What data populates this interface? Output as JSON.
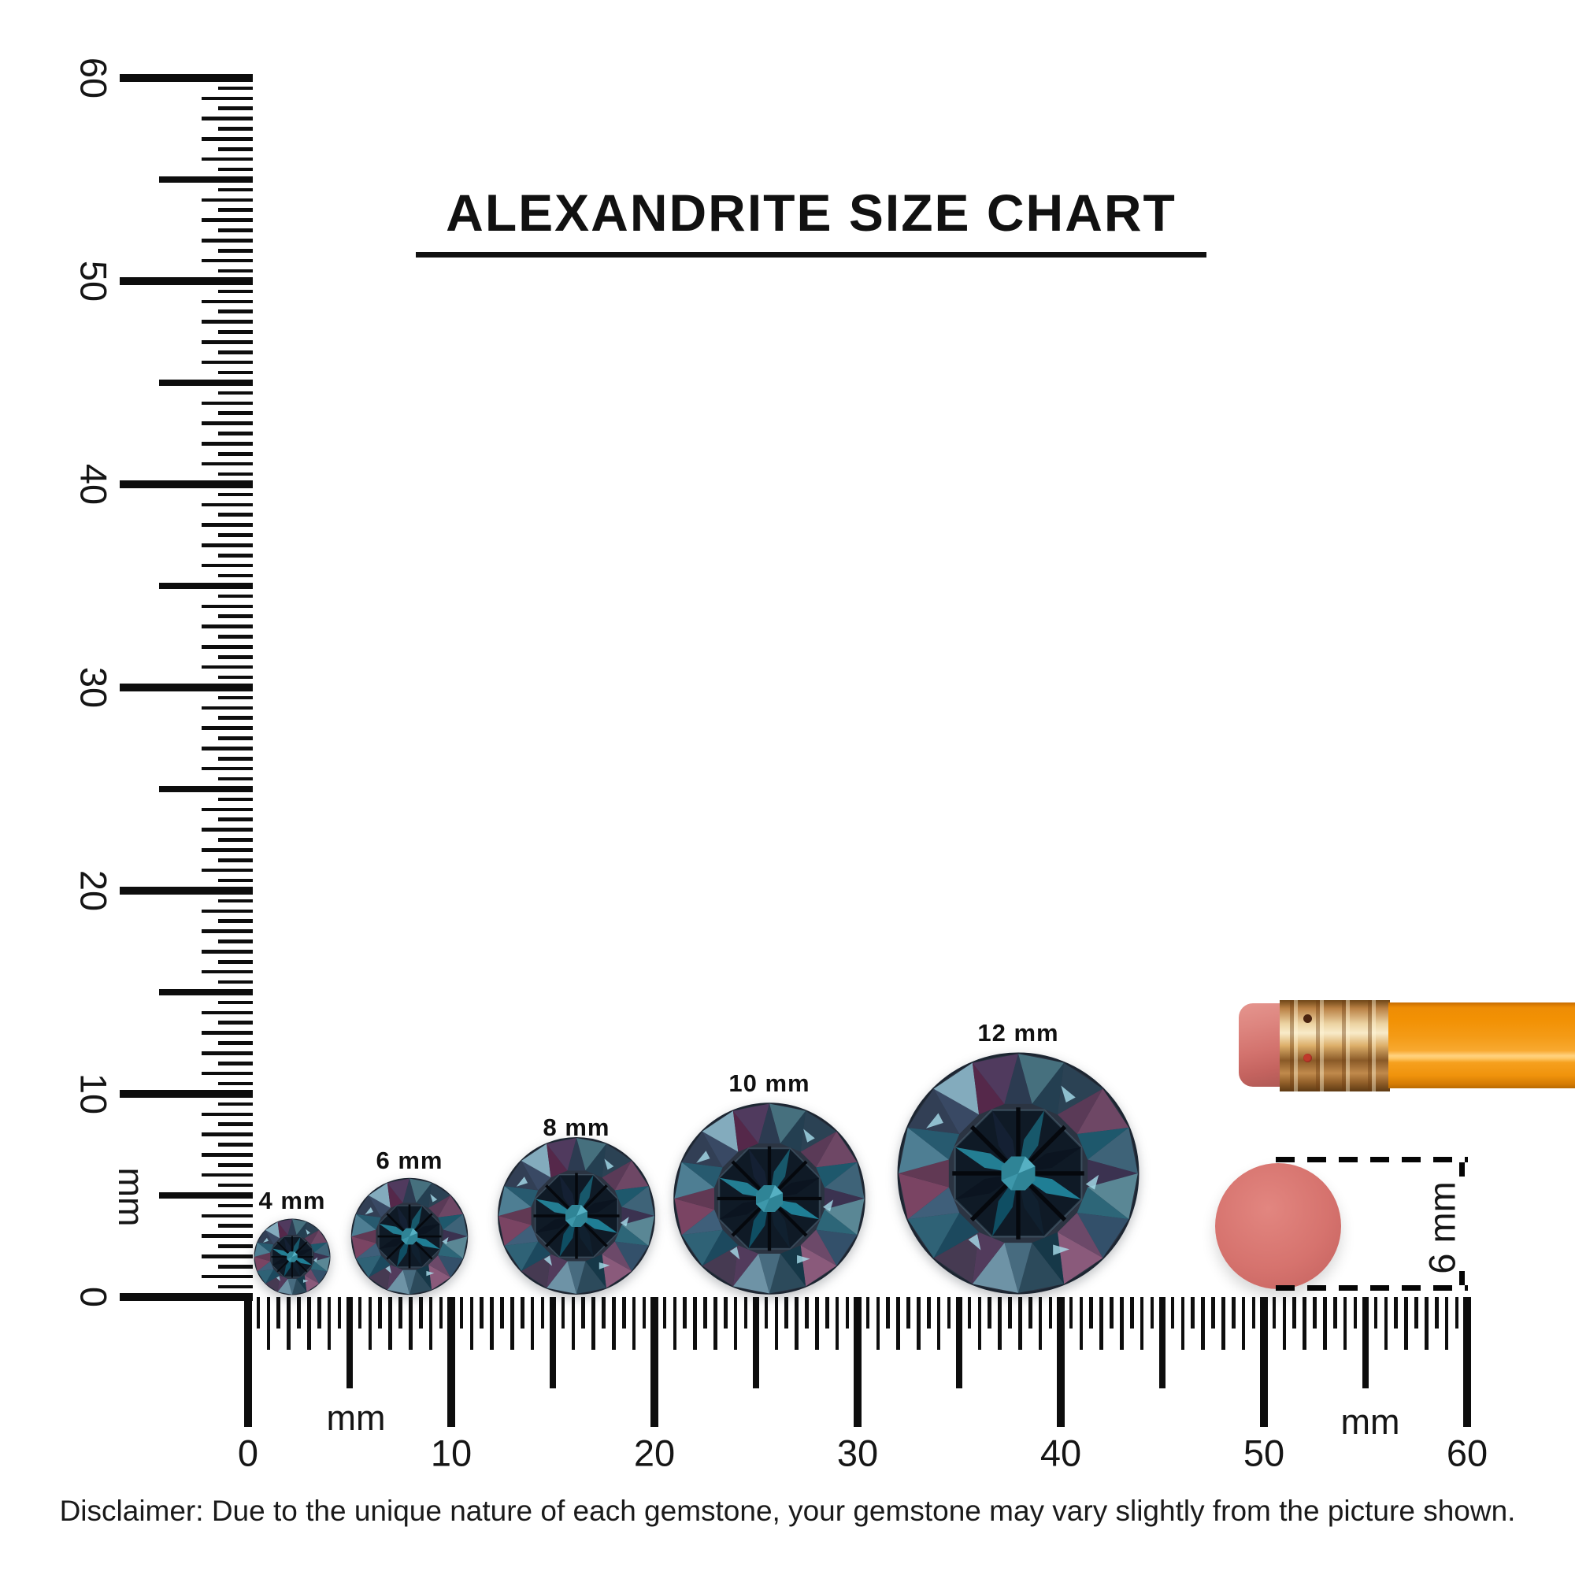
{
  "title": "ALEXANDRITE SIZE CHART",
  "rulers": {
    "vertical": {
      "unit": "mm",
      "tick_numbers": [
        0,
        10,
        20,
        30,
        40,
        50,
        60
      ],
      "range_mm": [
        0,
        60
      ]
    },
    "horizontal": {
      "unit_left": "mm",
      "unit_right": "mm",
      "tick_numbers": [
        0,
        10,
        20,
        30,
        40,
        50,
        60
      ],
      "range_mm": [
        0,
        60
      ]
    }
  },
  "gems": [
    {
      "label": "4 mm",
      "size_mm": 4
    },
    {
      "label": "6 mm",
      "size_mm": 6
    },
    {
      "label": "8 mm",
      "size_mm": 8
    },
    {
      "label": "10 mm",
      "size_mm": 10
    },
    {
      "label": "12 mm",
      "size_mm": 12
    }
  ],
  "reference_objects": {
    "pencil": {
      "name": "pencil with eraser",
      "body_color": "#F59B1F",
      "ferrule_color": "#D9A05B",
      "eraser_color": "#D4746F"
    },
    "eraser_dot": {
      "label": "6 mm",
      "color": "#D4716C"
    }
  },
  "gem_colors": {
    "rim": "#2B3442",
    "table": "#0F1A26",
    "core": "#2F8496",
    "outer_facets": [
      "#46707E",
      "#2B4254",
      "#6E4765",
      "#3E6378",
      "#5A8795",
      "#33506A",
      "#8A5A7B",
      "#2C4A5B",
      "#6E93A6",
      "#463A52",
      "#2F6276",
      "#7A4463",
      "#4E7E93",
      "#323F55",
      "#83ABBD",
      "#503A5E"
    ],
    "mid_facets": [
      "#243F51",
      "#5A3A57",
      "#1E586C",
      "#3B3250",
      "#2D6678",
      "#6C4969",
      "#163848",
      "#476B7F",
      "#523B5C",
      "#1C495E",
      "#3F5F7A",
      "#613954",
      "#275A6F",
      "#394964",
      "#55284A",
      "#2C3B51"
    ],
    "star_facets": [
      "#17586B",
      "#0B1420",
      "#1F7E95",
      "#10202F",
      "#0F4E63",
      "#0B1420",
      "#237E93",
      "#142033"
    ]
  },
  "chart_data": {
    "type": "table",
    "title": "ALEXANDRITE SIZE CHART",
    "categories": [
      "4 mm",
      "6 mm",
      "8 mm",
      "10 mm",
      "12 mm"
    ],
    "values": [
      4,
      6,
      8,
      10,
      12
    ],
    "units": "mm",
    "xlabel": "mm",
    "axis_range_mm": [
      0,
      60
    ],
    "reference": "pencil eraser dot = 6 mm"
  },
  "disclaimer": "Disclaimer: Due to the unique nature of each gemstone, your gemstone may vary slightly from the picture shown."
}
